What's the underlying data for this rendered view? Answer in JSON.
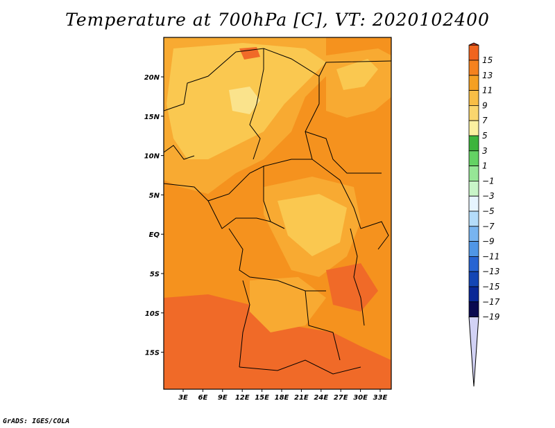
{
  "title": "Temperature at 700hPa [C], VT: 2020102400",
  "footer": "GrADS: IGES/COLA",
  "map": {
    "lat_ticks": [
      "20N",
      "15N",
      "10N",
      "5N",
      "EQ",
      "5S",
      "10S",
      "15S"
    ],
    "lon_ticks": [
      "3E",
      "6E",
      "9E",
      "12E",
      "15E",
      "18E",
      "21E",
      "24E",
      "27E",
      "30E",
      "33E"
    ],
    "lon_range": [
      0,
      35
    ],
    "lat_range": [
      -19,
      25
    ],
    "variable": "Temperature at 700hPa",
    "units": "C"
  },
  "colorbar": {
    "labels": [
      "15",
      "13",
      "11",
      "9",
      "7",
      "5",
      "3",
      "1",
      "−1",
      "−3",
      "−5",
      "−7",
      "−9",
      "−11",
      "−13",
      "−15",
      "−17",
      "−19"
    ],
    "colors": [
      "#e63c1e",
      "#f0641e",
      "#f5821e",
      "#f5a023",
      "#f8be46",
      "#fad66e",
      "#faf0a0",
      "#3cb43c",
      "#64d264",
      "#96e696",
      "#c8f5c8",
      "#e6f5ff",
      "#b4dcfa",
      "#78b4f0",
      "#5096e6",
      "#2864d2",
      "#1446b4",
      "#0a2896",
      "#0a0a50",
      "#d2d2f5"
    ]
  },
  "palette": {
    "t12": "#f06a28",
    "t10": "#f5921e",
    "t8": "#f8aa32",
    "t6": "#fac850",
    "t4": "#fae38c"
  }
}
